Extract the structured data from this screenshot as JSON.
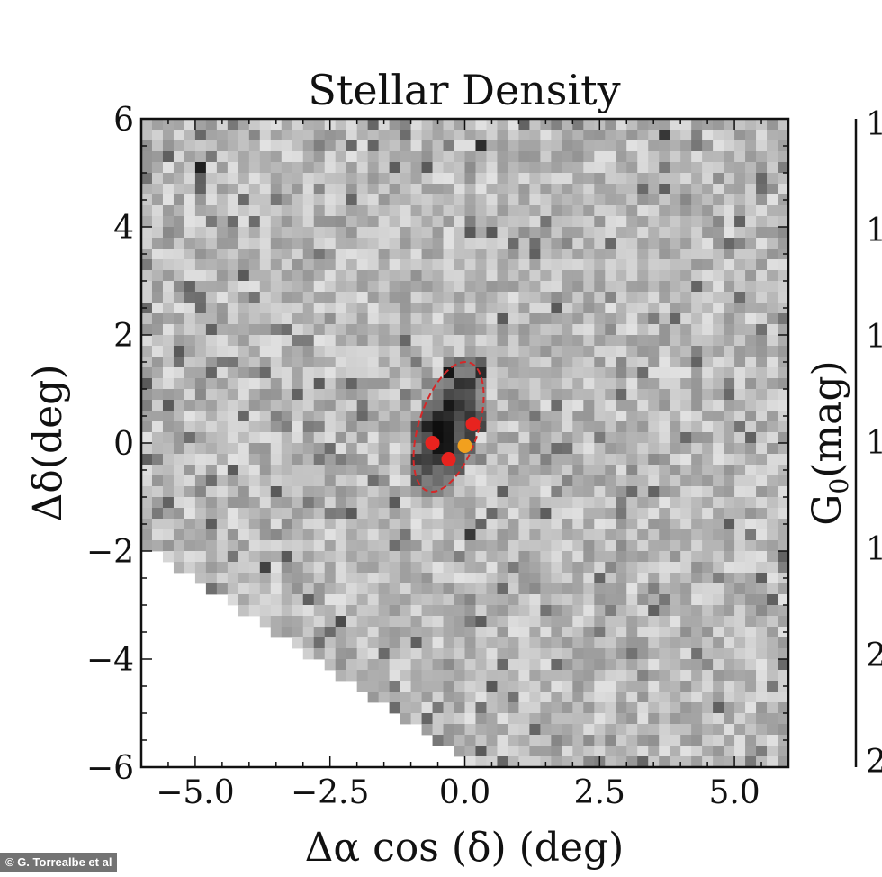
{
  "chart_data": {
    "type": "heatmap",
    "title": "Stellar Density",
    "xlabel": "Δα cos (δ) (deg)",
    "ylabel": "Δδ(deg)",
    "xlim": [
      -6,
      6
    ],
    "ylim": [
      -6,
      6
    ],
    "xticks": [
      -5.0,
      -2.5,
      0.0,
      2.5,
      5.0
    ],
    "xtick_labels": [
      "−5.0",
      "−2.5",
      "0.0",
      "2.5",
      "5.0"
    ],
    "yticks": [
      6,
      4,
      2,
      0,
      -2,
      -4,
      -6
    ],
    "ytick_labels": [
      "6",
      "4",
      "2",
      "0",
      "−2",
      "−4",
      "−6"
    ],
    "colormap": "greys",
    "grid": false,
    "ellipse": {
      "center": [
        -0.3,
        0.3
      ],
      "semi_axes": [
        0.55,
        1.25
      ],
      "angle_deg": 18,
      "color": "#d62728",
      "style": "dashed"
    },
    "points": [
      {
        "x": -0.6,
        "y": 0.0,
        "color": "#e8231f"
      },
      {
        "x": 0.15,
        "y": 0.35,
        "color": "#e8231f"
      },
      {
        "x": -0.3,
        "y": -0.3,
        "color": "#e8231f"
      },
      {
        "x": 0.0,
        "y": -0.05,
        "color": "#f2a01e"
      }
    ]
  },
  "right_panel": {
    "ylabel": "G",
    "ylabel_sub": "0",
    "ylabel_unit": "(mag)",
    "tick_fragments": [
      "1",
      "1",
      "1",
      "1",
      "1",
      "2",
      "2"
    ]
  },
  "credit": "© G. Torrealbe et al"
}
